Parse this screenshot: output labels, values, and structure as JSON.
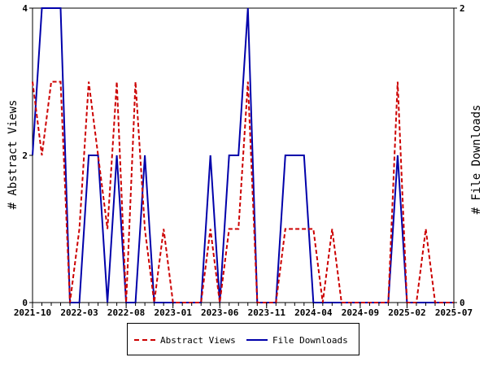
{
  "chart_data": {
    "type": "line",
    "x_ticks": [
      "2021-10",
      "2022-03",
      "2022-08",
      "2023-01",
      "2023-06",
      "2023-11",
      "2024-04",
      "2024-09",
      "2025-02",
      "2025-07"
    ],
    "y_left": {
      "label": "# Abstract Views",
      "ticks": [
        "0",
        "2",
        "4"
      ],
      "range": [
        0,
        4
      ]
    },
    "y_right": {
      "label": "# File Downloads",
      "ticks": [
        "0",
        "2"
      ],
      "range": [
        0,
        2
      ]
    },
    "series": [
      {
        "name": "Abstract Views",
        "axis": "left",
        "color": "#cc0000",
        "style": "dashed",
        "x": [
          "2021-10",
          "2021-11",
          "2021-12",
          "2022-01",
          "2022-02",
          "2022-03",
          "2022-04",
          "2022-05",
          "2022-06",
          "2022-07",
          "2022-08",
          "2022-09",
          "2022-10",
          "2022-11",
          "2022-12",
          "2023-01",
          "2023-02",
          "2023-03",
          "2023-04",
          "2023-05",
          "2023-06",
          "2023-07",
          "2023-08",
          "2023-09",
          "2023-10",
          "2023-11",
          "2023-12",
          "2024-01",
          "2024-02",
          "2024-03",
          "2024-04",
          "2024-05",
          "2024-06",
          "2024-07",
          "2024-08",
          "2024-09",
          "2024-10",
          "2024-11",
          "2024-12",
          "2025-01",
          "2025-02",
          "2025-03",
          "2025-04",
          "2025-05",
          "2025-06",
          "2025-07"
        ],
        "values": [
          3,
          2,
          3,
          3,
          0,
          1,
          3,
          2,
          1,
          3,
          0,
          3,
          1,
          0,
          1,
          0,
          0,
          0,
          0,
          1,
          0,
          1,
          1,
          3,
          0,
          0,
          0,
          1,
          1,
          1,
          1,
          0,
          1,
          0,
          0,
          0,
          0,
          0,
          0,
          3,
          0,
          0,
          1,
          0,
          0,
          0
        ]
      },
      {
        "name": "File Downloads",
        "axis": "right",
        "color": "#0000aa",
        "style": "solid",
        "x": [
          "2021-10",
          "2021-11",
          "2021-12",
          "2022-01",
          "2022-02",
          "2022-03",
          "2022-04",
          "2022-05",
          "2022-06",
          "2022-07",
          "2022-08",
          "2022-09",
          "2022-10",
          "2022-11",
          "2022-12",
          "2023-01",
          "2023-02",
          "2023-03",
          "2023-04",
          "2023-05",
          "2023-06",
          "2023-07",
          "2023-08",
          "2023-09",
          "2023-10",
          "2023-11",
          "2023-12",
          "2024-01",
          "2024-02",
          "2024-03",
          "2024-04",
          "2024-05",
          "2024-06",
          "2024-07",
          "2024-08",
          "2024-09",
          "2024-10",
          "2024-11",
          "2024-12",
          "2025-01",
          "2025-02",
          "2025-03",
          "2025-04",
          "2025-05",
          "2025-06",
          "2025-07"
        ],
        "values": [
          1,
          2,
          2,
          2,
          0,
          0,
          1,
          1,
          0,
          1,
          0,
          0,
          1,
          0,
          0,
          0,
          0,
          0,
          0,
          1,
          0,
          1,
          1,
          2,
          0,
          0,
          0,
          1,
          1,
          1,
          0,
          0,
          0,
          0,
          0,
          0,
          0,
          0,
          0,
          1,
          0,
          0,
          0,
          0,
          0,
          0
        ]
      }
    ],
    "grid": false,
    "legend_position": "bottom"
  }
}
